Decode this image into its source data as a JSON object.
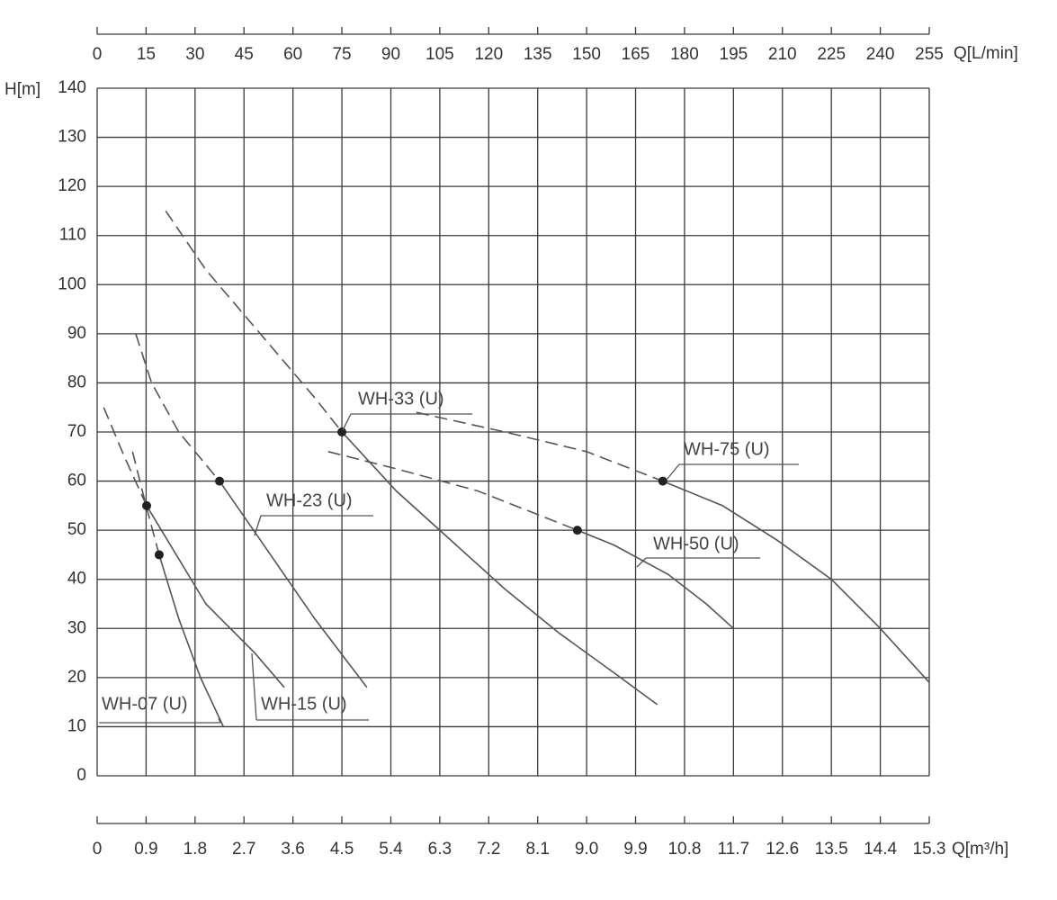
{
  "chart_data": {
    "type": "line",
    "x_label": "Q[m³/h]",
    "x2_label": "Q[L/min]",
    "y_label": "H[m]",
    "xlim": [
      0,
      15.3
    ],
    "xticks": [
      0,
      0.9,
      1.8,
      2.7,
      3.6,
      4.5,
      5.4,
      6.3,
      7.2,
      8.1,
      {
        "value": 9,
        "label": "9.0"
      },
      9.9,
      10.8,
      11.7,
      12.6,
      13.5,
      14.4,
      15.3
    ],
    "x2lim": [
      0,
      255
    ],
    "x2ticks": [
      0,
      15,
      30,
      45,
      60,
      75,
      90,
      105,
      120,
      135,
      150,
      165,
      180,
      195,
      210,
      225,
      240,
      255
    ],
    "ylim": [
      0,
      140
    ],
    "yticks": [
      0,
      10,
      20,
      30,
      40,
      50,
      60,
      70,
      80,
      90,
      100,
      110,
      120,
      130,
      140
    ],
    "grid": true,
    "series": [
      {
        "name": "WH-07 (U)",
        "color": "#555555",
        "x": [
          0.65,
          0.9,
          1.14,
          1.5,
          1.9,
          2.32
        ],
        "values": [
          66,
          55,
          45,
          32,
          20,
          10
        ],
        "operating_point": {
          "x": 1.14,
          "y": 45
        }
      },
      {
        "name": "WH-15 (U)",
        "color": "#555555",
        "x": [
          0.12,
          0.5,
          0.91,
          2.0,
          2.9,
          3.44
        ],
        "values": [
          75,
          65,
          55,
          35,
          25,
          18
        ],
        "operating_point": {
          "x": 0.91,
          "y": 55
        }
      },
      {
        "name": "WH-23 (U)",
        "color": "#555555",
        "x": [
          0.71,
          1.0,
          1.5,
          2.25,
          3.0,
          4.0,
          4.96
        ],
        "values": [
          90,
          80,
          70,
          60,
          48,
          32,
          18
        ],
        "operating_point": {
          "x": 2.25,
          "y": 60
        }
      },
      {
        "name": "WH-33 (U)",
        "color": "#555555",
        "x": [
          1.26,
          2.0,
          3.0,
          4.0,
          4.5,
          5.5,
          6.6,
          7.5,
          8.5,
          9.5,
          10.3
        ],
        "values": [
          115,
          103,
          90,
          77,
          70,
          58,
          47,
          38,
          29,
          21,
          14.5
        ],
        "operating_point": {
          "x": 4.5,
          "y": 70
        }
      },
      {
        "name": "WH-50 (U)",
        "color": "#555555",
        "x": [
          4.25,
          5.5,
          7.0,
          8.83,
          9.5,
          10.5,
          11.2,
          11.7
        ],
        "values": [
          66,
          62.5,
          58,
          50,
          47,
          41,
          35,
          30
        ],
        "operating_point": {
          "x": 8.83,
          "y": 50
        }
      },
      {
        "name": "WH-75 (U)",
        "color": "#555555",
        "x": [
          5.87,
          7.5,
          9.0,
          10.4,
          11.5,
          12.5,
          13.5,
          14.4,
          15.3
        ],
        "values": [
          74,
          70,
          66,
          60,
          55,
          48,
          40,
          30,
          19
        ],
        "operating_point": {
          "x": 10.4,
          "y": 60
        }
      }
    ]
  }
}
